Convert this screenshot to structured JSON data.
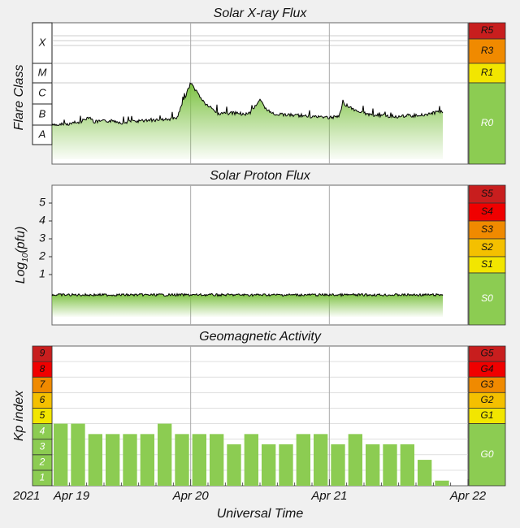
{
  "chart_data": [
    {
      "type": "area",
      "title": "Solar X-ray Flux",
      "ylabel": "Flare Class",
      "y_scale": "log",
      "flare_classes": [
        "A",
        "B",
        "C",
        "M",
        "X"
      ],
      "scale_labels": [
        "R5",
        "R3",
        "R1",
        "R0"
      ],
      "scale_colors": [
        "#c81e1e",
        "#f08a00",
        "#f2e600",
        "#8ccc52"
      ],
      "x_days": [
        0,
        0.1,
        0.2,
        0.27,
        0.3,
        0.35,
        0.45,
        0.5,
        0.6,
        0.7,
        0.8,
        0.9,
        1.0,
        1.1,
        1.2,
        1.32,
        1.38,
        1.43,
        1.5,
        1.55,
        1.6,
        1.7,
        1.8,
        1.9,
        2.0,
        2.07,
        2.1,
        2.2,
        2.3,
        2.4,
        2.5,
        2.6,
        2.7,
        2.77,
        2.82
      ],
      "flux_class": [
        "A9.5",
        "B1.1",
        "B1.3",
        "B2.6",
        "B1.4",
        "B1.5",
        "B1.6",
        "B1.3",
        "B1.5",
        "B1.7",
        "B1.8",
        "B2.0",
        "M1.0",
        "C1.1",
        "B3.5",
        "B3.7",
        "B3.2",
        "B4.0",
        "C1.6",
        "B4.5",
        "B3.4",
        "B3.0",
        "B2.8",
        "B2.5",
        "B2.3",
        "B2.6",
        "C1.1",
        "B4.5",
        "B3.0",
        "B2.8",
        "B2.5",
        "B2.8",
        "B3.2",
        "B4.0",
        "B4.5"
      ]
    },
    {
      "type": "area",
      "title": "Solar Proton Flux",
      "ylabel": "Log₁₀(pfu)",
      "ylabel_base": "Log",
      "ylabel_sub": "10",
      "ylabel_unit": "(pfu)",
      "yticks": [
        "1",
        "2",
        "3",
        "4",
        "5"
      ],
      "scale_labels": [
        "S5",
        "S4",
        "S3",
        "S2",
        "S1",
        "S0"
      ],
      "scale_colors": [
        "#c81e1e",
        "#f00000",
        "#f08a00",
        "#f4c000",
        "#f2e600",
        "#8ccc52"
      ],
      "log10_pfu_mean": -0.4
    },
    {
      "type": "bar",
      "title": "Geomagnetic Activity",
      "ylabel": "Kp index",
      "xlabel": "Universal Time",
      "year": "2021",
      "date_labels": [
        "Apr 19",
        "Apr 20",
        "Apr 21",
        "Apr 22"
      ],
      "kp_levels": [
        "1",
        "2",
        "3",
        "4",
        "5",
        "6",
        "7",
        "8",
        "9"
      ],
      "kp_colors": [
        "#8ccc52",
        "#8ccc52",
        "#8ccc52",
        "#8ccc52",
        "#f2e600",
        "#f4c000",
        "#f08a00",
        "#f00000",
        "#c81e1e"
      ],
      "scale_labels": [
        "G5",
        "G4",
        "G3",
        "G2",
        "G1",
        "G0"
      ],
      "scale_colors": [
        "#c81e1e",
        "#f00000",
        "#f08a00",
        "#f4c000",
        "#f2e600",
        "#8ccc52"
      ],
      "bar_color": "#8ccc52",
      "kp_values": [
        4.0,
        4.0,
        3.33,
        3.33,
        3.33,
        3.33,
        4.0,
        3.33,
        3.33,
        3.33,
        2.67,
        3.33,
        2.67,
        2.67,
        3.33,
        3.33,
        2.67,
        3.33,
        2.67,
        2.67,
        2.67,
        1.67,
        0.33,
        0
      ],
      "ylim": [
        0,
        9
      ]
    }
  ],
  "colors": {
    "background": "#f0f0f0",
    "plot": "#ffffff",
    "fill": "#7cc242",
    "line": "#000000"
  }
}
